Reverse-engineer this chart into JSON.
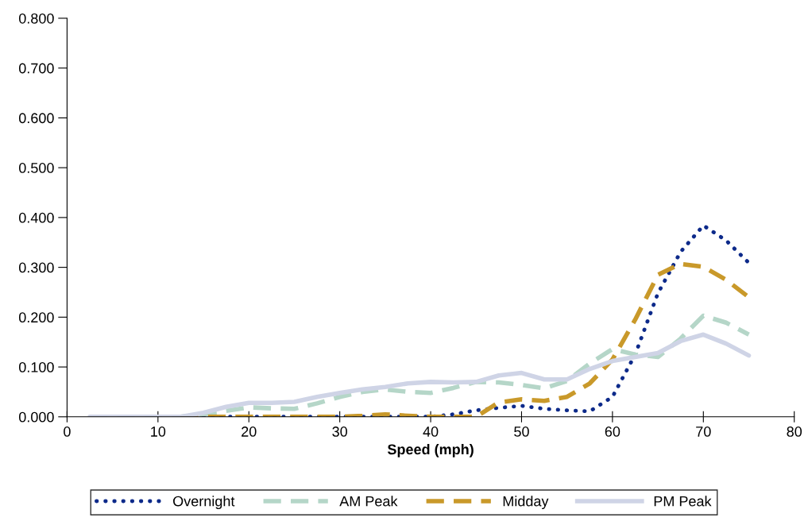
{
  "chart_data": {
    "type": "line",
    "xlabel": "Speed (mph)",
    "x": [
      2.5,
      5,
      7.5,
      10,
      12.5,
      15,
      17.5,
      20,
      22.5,
      25,
      27.5,
      30,
      32.5,
      35,
      37.5,
      40,
      42.5,
      45,
      47.5,
      50,
      52.5,
      55,
      57.5,
      60,
      62.5,
      65,
      67.5,
      70,
      72.5,
      75
    ],
    "series": [
      {
        "name": "Overnight",
        "color": "#0d2a8a",
        "line_style": "dotted",
        "values": [
          null,
          null,
          null,
          null,
          null,
          0,
          0,
          0,
          0,
          0,
          0,
          0,
          0,
          0,
          0,
          0,
          0.005,
          0.013,
          0.018,
          0.022,
          0.016,
          0.013,
          0.011,
          0.04,
          0.125,
          0.248,
          0.331,
          0.384,
          0.354,
          0.309
        ]
      },
      {
        "name": "AM Peak",
        "color": "#b5d6c8",
        "line_style": "dashed",
        "values": [
          0,
          0,
          0,
          0,
          0,
          0.005,
          0.012,
          0.019,
          0.017,
          0.016,
          0.027,
          0.04,
          0.05,
          0.055,
          0.05,
          0.048,
          0.058,
          0.07,
          0.069,
          0.064,
          0.057,
          0.072,
          0.107,
          0.136,
          0.125,
          0.12,
          0.157,
          0.203,
          0.189,
          0.165
        ]
      },
      {
        "name": "Midday",
        "color": "#c9992a",
        "line_style": "dashed",
        "values": [
          null,
          null,
          null,
          null,
          0,
          0,
          0,
          0,
          0,
          0,
          0,
          0,
          0.002,
          0.005,
          0.002,
          0,
          0,
          0,
          0.029,
          0.035,
          0.032,
          0.04,
          0.067,
          0.115,
          0.195,
          0.285,
          0.307,
          0.301,
          0.275,
          0.24
        ]
      },
      {
        "name": "PM Peak",
        "color": "#cfd4e6",
        "line_style": "solid",
        "values": [
          0,
          0,
          0,
          0,
          0,
          0.008,
          0.02,
          0.028,
          0.028,
          0.03,
          0.04,
          0.048,
          0.055,
          0.06,
          0.067,
          0.07,
          0.069,
          0.07,
          0.083,
          0.088,
          0.075,
          0.075,
          0.096,
          0.112,
          0.12,
          0.128,
          0.152,
          0.165,
          0.147,
          0.123
        ]
      }
    ],
    "xlim": [
      0,
      80
    ],
    "xticks": [
      0,
      10,
      20,
      30,
      40,
      50,
      60,
      70,
      80
    ],
    "ylim": [
      0,
      0.8
    ],
    "yticks": [
      {
        "value": 0,
        "label": "0.000"
      },
      {
        "value": 0.1,
        "label": "0.100"
      },
      {
        "value": 0.2,
        "label": "0.200"
      },
      {
        "value": 0.3,
        "label": "0.300"
      },
      {
        "value": 0.4,
        "label": "0.400"
      },
      {
        "value": 0.5,
        "label": "0.500"
      },
      {
        "value": 0.6,
        "label": "0.600"
      },
      {
        "value": 0.7,
        "label": "0.700"
      },
      {
        "value": 0.8,
        "label": "0.800"
      }
    ],
    "grid": false,
    "legend": "bottom",
    "marker": "none"
  }
}
